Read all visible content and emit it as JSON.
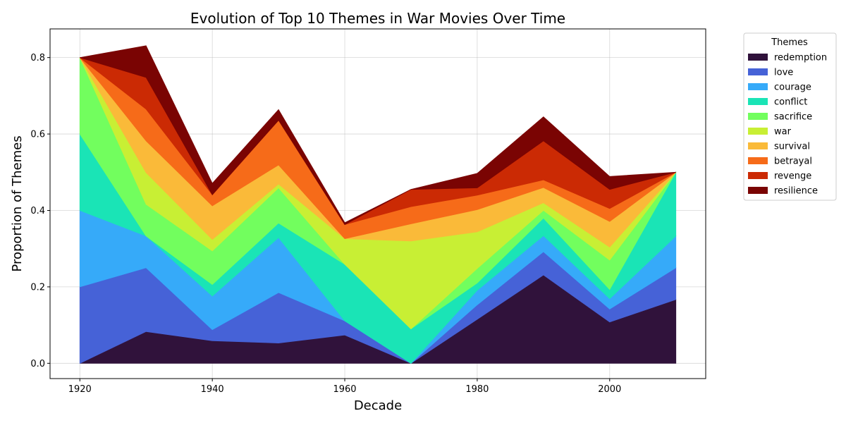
{
  "chart_data": {
    "type": "area",
    "title": "Evolution of Top 10 Themes in War Movies Over Time",
    "xlabel": "Decade",
    "ylabel": "Proportion of Themes",
    "x": [
      1920,
      1930,
      1940,
      1950,
      1960,
      1970,
      1980,
      1990,
      2000,
      2010
    ],
    "xticks": [
      1920,
      1940,
      1960,
      1980,
      2000
    ],
    "yticks": [
      0.0,
      0.2,
      0.4,
      0.6,
      0.8
    ],
    "xlim": [
      1915.5,
      2014.5
    ],
    "ylim": [
      -0.04,
      0.875
    ],
    "grid": true,
    "stacked": true,
    "legend_title": "Themes",
    "legend_position": "outside-right",
    "series": [
      {
        "name": "redemption",
        "color": "#30123b",
        "values": [
          0.0,
          0.083,
          0.059,
          0.053,
          0.074,
          0.0,
          0.115,
          0.231,
          0.108,
          0.167
        ]
      },
      {
        "name": "love",
        "color": "#4662d7",
        "values": [
          0.2,
          0.167,
          0.029,
          0.132,
          0.037,
          0.0,
          0.038,
          0.061,
          0.034,
          0.083
        ]
      },
      {
        "name": "courage",
        "color": "#36aaf9",
        "values": [
          0.2,
          0.083,
          0.088,
          0.144,
          0.0,
          0.0,
          0.038,
          0.042,
          0.027,
          0.083
        ]
      },
      {
        "name": "conflict",
        "color": "#1ae4b6",
        "values": [
          0.2,
          0.0,
          0.03,
          0.038,
          0.148,
          0.09,
          0.019,
          0.046,
          0.024,
          0.167
        ]
      },
      {
        "name": "sacrifice",
        "color": "#72fe5e",
        "values": [
          0.2,
          0.083,
          0.088,
          0.092,
          0.0,
          0.0,
          0.038,
          0.02,
          0.077,
          0.0
        ]
      },
      {
        "name": "war",
        "color": "#c8ef34",
        "values": [
          0.0,
          0.083,
          0.03,
          0.01,
          0.067,
          0.23,
          0.096,
          0.02,
          0.034,
          0.0
        ]
      },
      {
        "name": "survival",
        "color": "#faba39",
        "values": [
          0.0,
          0.083,
          0.088,
          0.05,
          0.0,
          0.045,
          0.058,
          0.04,
          0.067,
          0.0
        ]
      },
      {
        "name": "betrayal",
        "color": "#f66b19",
        "values": [
          0.0,
          0.083,
          0.029,
          0.117,
          0.037,
          0.045,
          0.038,
          0.02,
          0.034,
          0.0
        ]
      },
      {
        "name": "revenge",
        "color": "#cb2a04",
        "values": [
          0.0,
          0.083,
          0.0,
          0.0,
          0.0,
          0.045,
          0.019,
          0.102,
          0.05,
          0.0
        ]
      },
      {
        "name": "resilience",
        "color": "#7a0403",
        "values": [
          0.0,
          0.083,
          0.03,
          0.028,
          0.005,
          0.0,
          0.038,
          0.063,
          0.034,
          0.0
        ]
      }
    ]
  }
}
